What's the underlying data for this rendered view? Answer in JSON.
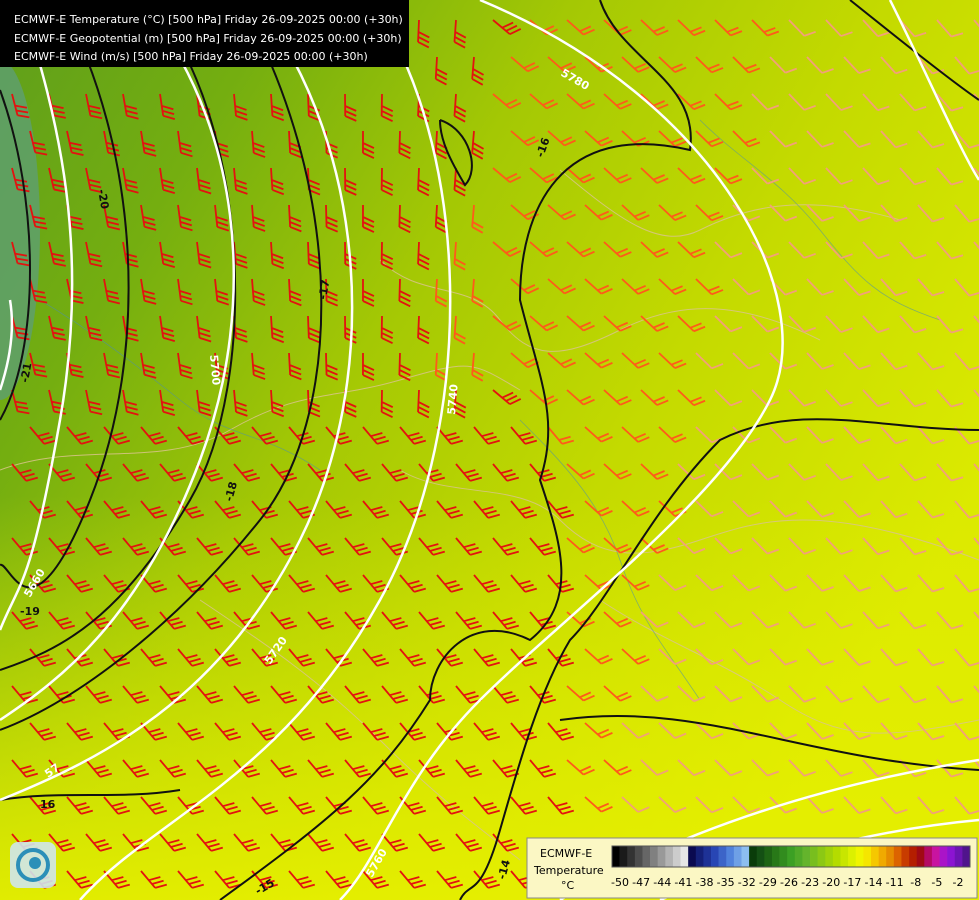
{
  "header": {
    "lines": [
      "ECMWF-E Temperature (°C) [500 hPa] Friday 26-09-2025 00:00 (+30h)",
      "ECMWF-E Geopotential (m) [500 hPa] Friday 26-09-2025 00:00 (+30h)",
      "ECMWF-E Wind (m/s) [500 hPa] Friday 26-09-2025 00:00 (+30h)"
    ]
  },
  "contour_labels": {
    "temperature": [
      "-20",
      "-21",
      "-17",
      "-18",
      "-19",
      "-16",
      "16",
      "-15",
      "-14"
    ],
    "geopotential": [
      "5780",
      "5700",
      "5740",
      "5660",
      "5720",
      "57",
      "5760"
    ]
  },
  "legend": {
    "title": "ECMWF-E",
    "subtitle": "Temperature",
    "unit": "°C",
    "ticks": [
      -50,
      -47,
      -44,
      -41,
      -38,
      -35,
      -32,
      -29,
      -26,
      -23,
      -20,
      -17,
      -14,
      -11,
      -8,
      -5,
      -2
    ]
  }
}
